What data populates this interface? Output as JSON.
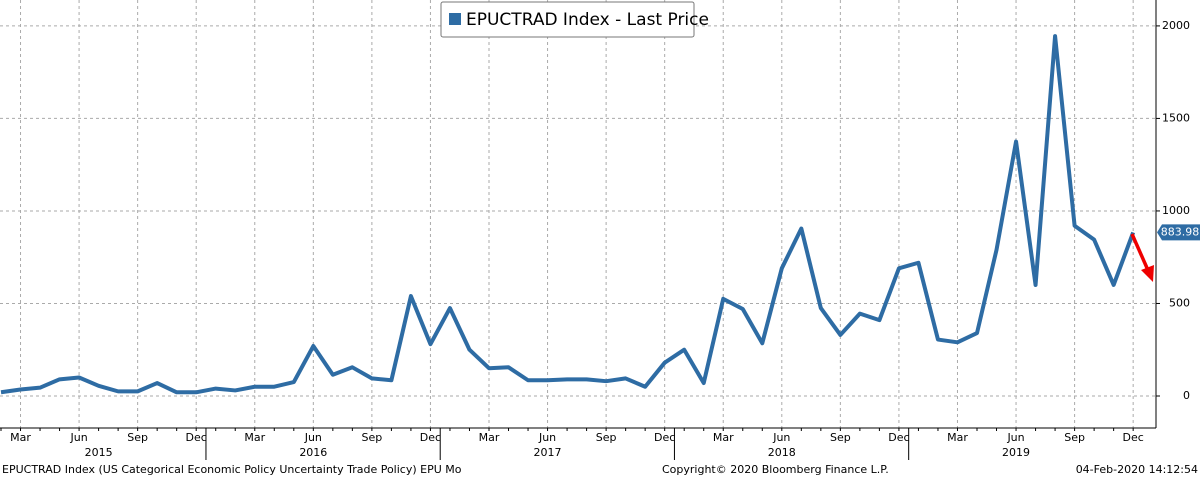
{
  "chart_data": {
    "type": "line",
    "categories": [
      null,
      "Mar",
      null,
      null,
      "Jun",
      null,
      null,
      "Sep",
      null,
      null,
      "Dec",
      null,
      null,
      "Mar",
      null,
      null,
      "Jun",
      null,
      null,
      "Sep",
      null,
      null,
      "Dec",
      null,
      null,
      "Mar",
      null,
      null,
      "Jun",
      null,
      null,
      "Sep",
      null,
      null,
      "Dec",
      null,
      null,
      "Mar",
      null,
      null,
      "Jun",
      null,
      null,
      "Sep",
      null,
      null,
      "Dec",
      null,
      null,
      "Mar",
      null,
      null,
      "Jun",
      null,
      null,
      "Sep",
      null,
      null,
      "Dec"
    ],
    "years": [
      "2015",
      "2016",
      "2017",
      "2018",
      "2019"
    ],
    "series": [
      {
        "name": "EPUCTRAD Index - Last Price",
        "color": "#2e6ca4",
        "values": [
          20,
          35,
          45,
          90,
          100,
          55,
          25,
          25,
          70,
          20,
          20,
          40,
          30,
          50,
          50,
          75,
          270,
          115,
          155,
          95,
          85,
          540,
          280,
          475,
          250,
          150,
          155,
          85,
          85,
          90,
          90,
          80,
          95,
          50,
          180,
          250,
          70,
          525,
          470,
          285,
          690,
          905,
          475,
          330,
          445,
          410,
          690,
          720,
          305,
          290,
          340,
          790,
          1375,
          600,
          1945,
          920,
          845,
          600,
          883.98
        ]
      }
    ],
    "ylim": [
      -173,
      2140
    ],
    "yticks": [
      0,
      500,
      1000,
      1500,
      2000
    ],
    "grid": true,
    "footer": {
      "left": "EPUCTRAD Index (US Categorical Economic Policy Uncertainty Trade Policy) EPU  Mo",
      "center": "Copyright© 2020 Bloomberg Finance L.P.",
      "right": "04-Feb-2020 14:12:54"
    }
  }
}
